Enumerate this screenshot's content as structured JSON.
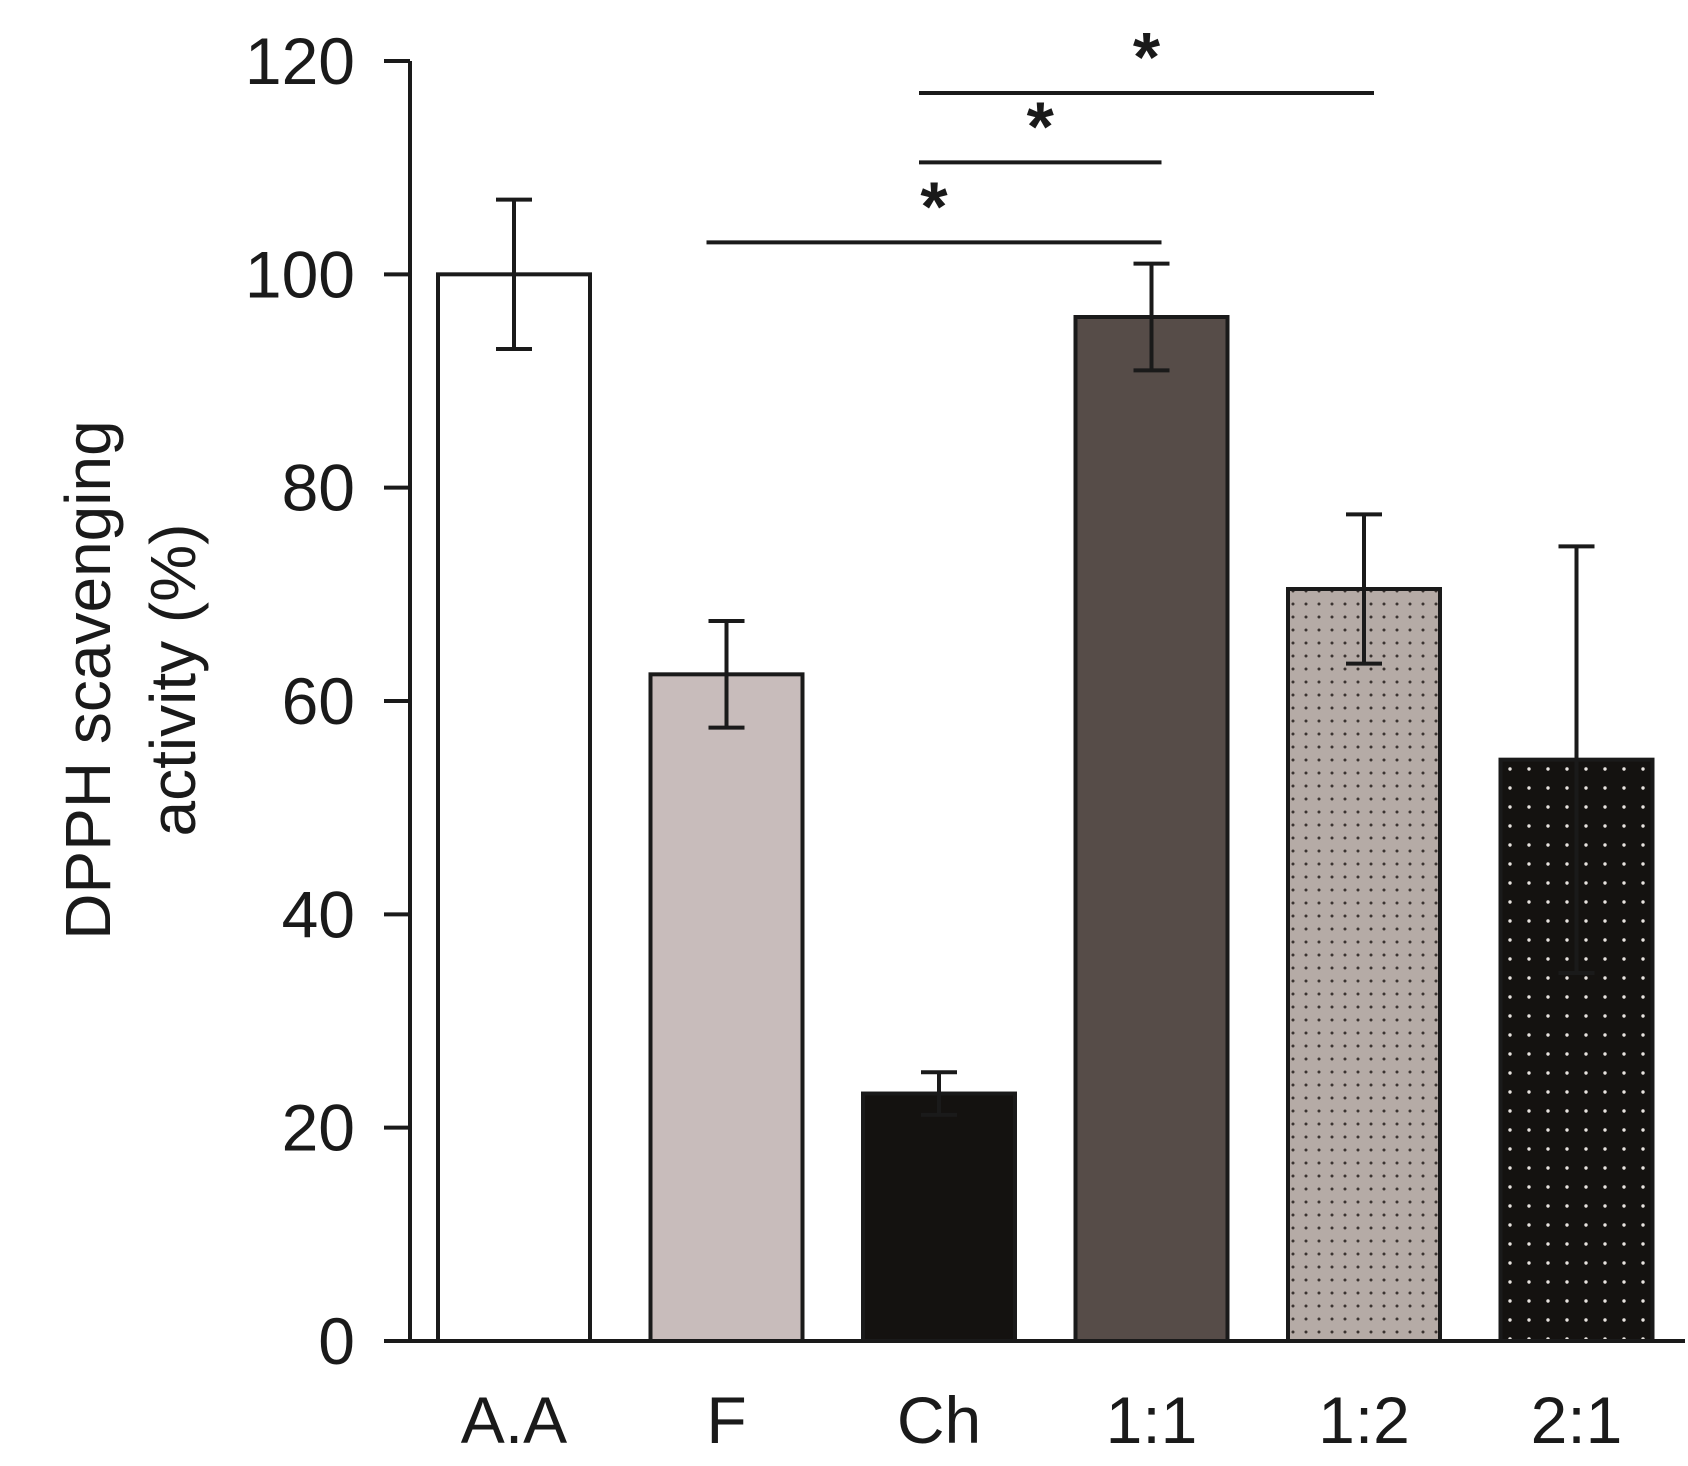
{
  "chart_data": {
    "type": "bar",
    "title": "",
    "xlabel": "",
    "ylabel_line1": "DPPH scavenging",
    "ylabel_line2": "activity (%)",
    "ylim": [
      0,
      120
    ],
    "yticks": [
      0,
      20,
      40,
      60,
      80,
      100,
      120
    ],
    "ytick_labels": [
      "0",
      "20",
      "40",
      "60",
      "80",
      "100",
      "120"
    ],
    "categories": [
      "A.A",
      "F",
      "Ch",
      "1:1",
      "1:2",
      "2:1"
    ],
    "values": [
      100,
      62.5,
      23.2,
      96,
      70.5,
      54.5
    ],
    "errors": [
      7,
      5,
      2,
      5,
      7,
      20
    ],
    "bar_fills": [
      "#ffffff",
      "#c8bcbb",
      "#141210",
      "#564c48",
      "#b5aba6",
      "#141210"
    ],
    "bar_patterns": [
      "none",
      "none",
      "none",
      "none",
      "dots-dark",
      "dots-light"
    ],
    "significance": [
      {
        "from": "Ch",
        "to": "1:2",
        "y": 117,
        "label": "*"
      },
      {
        "from": "Ch",
        "to": "1:1",
        "y": 110.5,
        "label": "*"
      },
      {
        "from": "F",
        "to": "1:1",
        "y": 103,
        "label": "*"
      }
    ],
    "grid": false,
    "legend": "none"
  }
}
